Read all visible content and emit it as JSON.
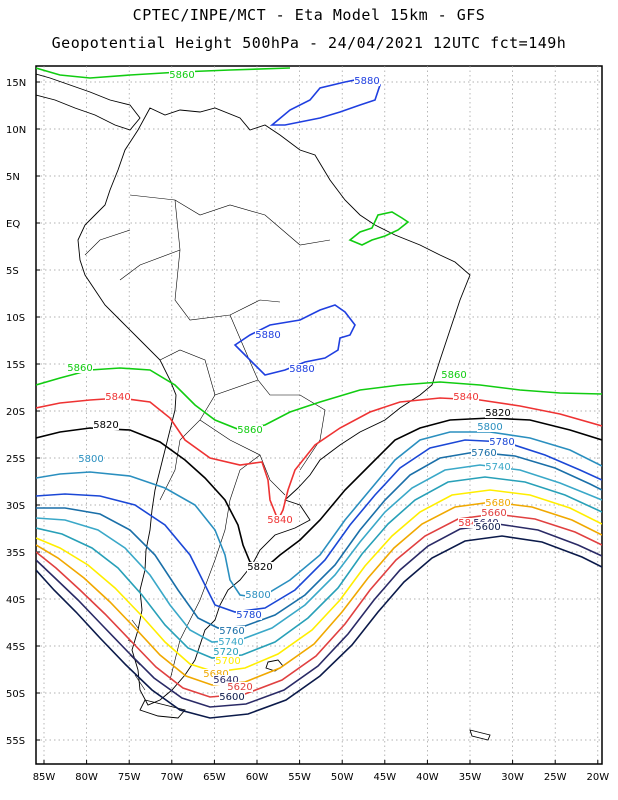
{
  "header": {
    "line1": "CPTEC/INPE/MCT -  Eta Model 15km - GFS",
    "line2": "Geopotential Height 500hPa - 24/04/2021 12UTC fct=149h"
  },
  "axes": {
    "lat_ticks": [
      "15N",
      "10N",
      "5N",
      "EQ",
      "5S",
      "10S",
      "15S",
      "20S",
      "25S",
      "30S",
      "35S",
      "40S",
      "45S",
      "50S",
      "55S"
    ],
    "lon_ticks": [
      "85W",
      "80W",
      "75W",
      "70W",
      "65W",
      "60W",
      "55W",
      "50W",
      "45W",
      "40W",
      "35W",
      "30W",
      "25W",
      "20W"
    ]
  },
  "colors": {
    "c5880": "#1f3fe0",
    "c5860": "#11cc11",
    "c5840": "#ee3333",
    "c5820": "#000000",
    "c5800": "#2a8fbf",
    "c5780": "#1b47d6",
    "c5760": "#1a6fa8",
    "c5740": "#3aa8c8",
    "c5720": "#28a0b8",
    "c5700": "#ffee00",
    "c5680": "#f0a800",
    "c5660": "#e04040",
    "c5640": "#2a2a66",
    "c5600": "#0b1a4a"
  },
  "contour_labels": [
    {
      "text": "5860"
    },
    {
      "text": "5880"
    },
    {
      "text": "5880"
    },
    {
      "text": "5880"
    },
    {
      "text": "5860"
    },
    {
      "text": "5860"
    },
    {
      "text": "5840"
    },
    {
      "text": "5840"
    },
    {
      "text": "5820"
    },
    {
      "text": "5820"
    },
    {
      "text": "5800"
    },
    {
      "text": "5780"
    },
    {
      "text": "5760"
    },
    {
      "text": "5740"
    },
    {
      "text": "5860"
    },
    {
      "text": "5840"
    },
    {
      "text": "5840"
    },
    {
      "text": "5820"
    },
    {
      "text": "5800"
    },
    {
      "text": "5780"
    },
    {
      "text": "5760"
    },
    {
      "text": "5740"
    },
    {
      "text": "5720"
    },
    {
      "text": "5700"
    },
    {
      "text": "5680"
    },
    {
      "text": "5640"
    },
    {
      "text": "5620"
    },
    {
      "text": "5600"
    },
    {
      "text": "5680"
    },
    {
      "text": "5660"
    },
    {
      "text": "5640"
    },
    {
      "text": "5600"
    },
    {
      "text": "5800"
    }
  ]
}
